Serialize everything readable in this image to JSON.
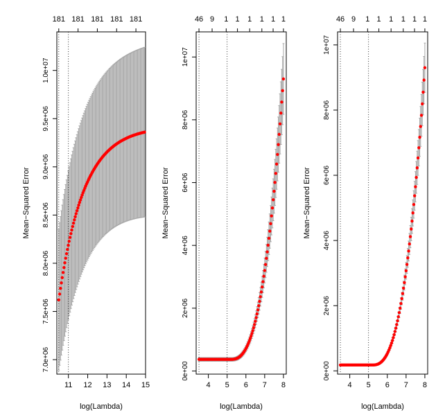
{
  "chart_data": [
    {
      "type": "scatter",
      "title": "",
      "xlabel": "log(Lambda)",
      "ylabel": "Mean−Squared Error",
      "xlim": [
        10.4,
        15.0
      ],
      "ylim": [
        6850000.0,
        10400000.0
      ],
      "x_ticks": [
        11,
        12,
        13,
        14,
        15
      ],
      "y_ticks": [
        7000000.0,
        7500000.0,
        8000000.0,
        8500000.0,
        9000000.0,
        9500000.0,
        10000000.0
      ],
      "y_tick_labels": [
        "7.0e+06",
        "7.5e+06",
        "8.0e+06",
        "8.5e+06",
        "9.0e+06",
        "9.5e+06",
        "1.0e+07"
      ],
      "top_axis_ticks": [
        10.5,
        11.5,
        12.5,
        13.5,
        14.5
      ],
      "top_axis_labels": [
        "181",
        "181",
        "181",
        "181",
        "181"
      ],
      "vlines": [
        10.5,
        11.0
      ],
      "series": [
        {
          "name": "cv mean",
          "x0": 10.5,
          "x1": 14.95,
          "y_start": 7620000.0,
          "y_end": 9360000.0,
          "se_start": 730000.0,
          "se_end": 880000.0,
          "n_points": 100
        }
      ]
    },
    {
      "type": "scatter",
      "title": "",
      "xlabel": "log(Lambda)",
      "ylabel": "Mean−Squared Error",
      "xlim": [
        3.35,
        8.15
      ],
      "ylim": [
        -100000.0,
        10800000.0
      ],
      "x_ticks": [
        4,
        5,
        6,
        7,
        8
      ],
      "y_ticks": [
        0,
        2000000.0,
        4000000.0,
        6000000.0,
        8000000.0,
        10000000.0
      ],
      "y_tick_labels": [
        "0e+00",
        "2e+06",
        "4e+06",
        "6e+06",
        "8e+06",
        "1e+07"
      ],
      "top_axis_ticks": [
        3.5,
        4.2,
        4.95,
        5.55,
        6.2,
        6.85,
        7.45,
        8.0
      ],
      "top_axis_labels": [
        "46",
        "9",
        "1",
        "1",
        "1",
        "1",
        "1",
        "1"
      ],
      "vlines": [
        3.5,
        5.0
      ],
      "series": [
        {
          "name": "cv mean",
          "x0": 3.5,
          "x1": 8.0,
          "y_base": 370000.0,
          "y_end": 9300000.0,
          "x_knee": 5.2,
          "se_rel": 0.12,
          "n_points": 100
        }
      ]
    },
    {
      "type": "scatter",
      "title": "",
      "xlabel": "log(Lambda)",
      "ylabel": "Mean−Squared Error",
      "xlim": [
        3.35,
        8.15
      ],
      "ylim": [
        -100000.0,
        10400000.0
      ],
      "x_ticks": [
        4,
        5,
        6,
        7,
        8
      ],
      "y_ticks": [
        0,
        2000000.0,
        4000000.0,
        6000000.0,
        8000000.0,
        10000000.0
      ],
      "y_tick_labels": [
        "0e+00",
        "2e+06",
        "4e+06",
        "6e+06",
        "8e+06",
        "1e+07"
      ],
      "top_axis_ticks": [
        3.5,
        4.2,
        4.95,
        5.55,
        6.2,
        6.85,
        7.45,
        8.0
      ],
      "top_axis_labels": [
        "46",
        "9",
        "1",
        "1",
        "1",
        "1",
        "1",
        "1"
      ],
      "vlines": [
        3.5,
        5.0
      ],
      "series": [
        {
          "name": "cv mean",
          "x0": 3.5,
          "x1": 8.0,
          "y_base": 180000.0,
          "y_end": 9300000.0,
          "x_knee": 5.2,
          "se_rel": 0.08,
          "n_points": 100
        }
      ]
    }
  ],
  "colors": {
    "points": "#ff0000",
    "error_bars": "#a6a6a6",
    "axes": "#000000",
    "ref_lines": "#000000"
  }
}
